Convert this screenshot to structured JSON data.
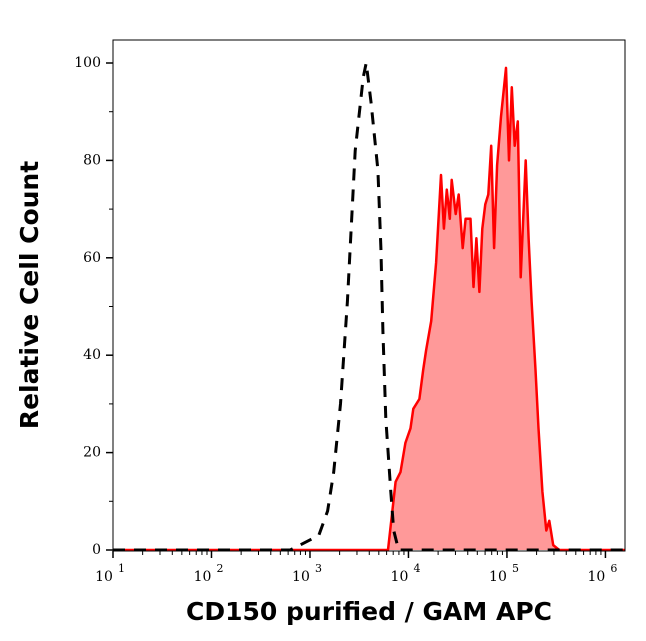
{
  "chart_data": {
    "type": "area",
    "title": "",
    "xlabel": "CD150 purified / GAM APC",
    "ylabel": "Relative Cell Count",
    "x_scale": "log",
    "xlim": [
      10,
      1580000.0
    ],
    "ylim": [
      0,
      105
    ],
    "x_ticks": [
      {
        "base": "10",
        "exp": "1",
        "value": 10
      },
      {
        "base": "10",
        "exp": "2",
        "value": 100
      },
      {
        "base": "10",
        "exp": "3",
        "value": 1000
      },
      {
        "base": "10",
        "exp": "4",
        "value": 10000
      },
      {
        "base": "10",
        "exp": "5",
        "value": 100000
      },
      {
        "base": "10",
        "exp": "6",
        "value": 1000000
      }
    ],
    "y_ticks": [
      "0",
      "20",
      "40",
      "60",
      "80",
      "100"
    ],
    "grid": false,
    "series": [
      {
        "style": "filled-solid",
        "line_color": "#ff0000",
        "fill_color": "#ff9999",
        "points": [
          [
            10,
            0
          ],
          [
            6200,
            0
          ],
          [
            7400,
            14
          ],
          [
            8300,
            16
          ],
          [
            9300,
            22
          ],
          [
            10500,
            25
          ],
          [
            11200,
            29
          ],
          [
            12900,
            31
          ],
          [
            14100,
            37
          ],
          [
            15100,
            41
          ],
          [
            17000,
            47
          ],
          [
            19100,
            59
          ],
          [
            21400,
            77
          ],
          [
            22900,
            66
          ],
          [
            24500,
            74
          ],
          [
            26300,
            68
          ],
          [
            27500,
            76
          ],
          [
            30200,
            69
          ],
          [
            32400,
            73
          ],
          [
            35500,
            62
          ],
          [
            38000,
            68
          ],
          [
            42700,
            68
          ],
          [
            45700,
            54
          ],
          [
            49000,
            64
          ],
          [
            52500,
            53
          ],
          [
            56200,
            66
          ],
          [
            60300,
            71
          ],
          [
            64600,
            73
          ],
          [
            69200,
            83
          ],
          [
            74100,
            62
          ],
          [
            79400,
            79
          ],
          [
            87100,
            89
          ],
          [
            91200,
            93
          ],
          [
            97700,
            99
          ],
          [
            105000,
            80
          ],
          [
            112000,
            95
          ],
          [
            120000,
            83
          ],
          [
            129000,
            88
          ],
          [
            138000,
            56
          ],
          [
            155000,
            80
          ],
          [
            166000,
            64
          ],
          [
            178000,
            51
          ],
          [
            195000,
            37
          ],
          [
            209000,
            25
          ],
          [
            229000,
            12
          ],
          [
            251000,
            4
          ],
          [
            269000,
            6
          ],
          [
            295000,
            1
          ],
          [
            339000,
            0
          ],
          [
            1580000,
            0
          ]
        ]
      },
      {
        "style": "dashed",
        "line_color": "#000000",
        "points": [
          [
            10,
            0
          ],
          [
            631,
            0
          ],
          [
            1230,
            3
          ],
          [
            1510,
            8
          ],
          [
            1740,
            16
          ],
          [
            2040,
            30
          ],
          [
            2400,
            51
          ],
          [
            2880,
            82
          ],
          [
            3470,
            97
          ],
          [
            3720,
            100
          ],
          [
            4170,
            92
          ],
          [
            4900,
            78
          ],
          [
            5250,
            62
          ],
          [
            5500,
            45
          ],
          [
            5890,
            27
          ],
          [
            6610,
            12
          ],
          [
            7080,
            4
          ],
          [
            7940,
            0
          ],
          [
            1580000,
            0
          ]
        ]
      }
    ]
  }
}
